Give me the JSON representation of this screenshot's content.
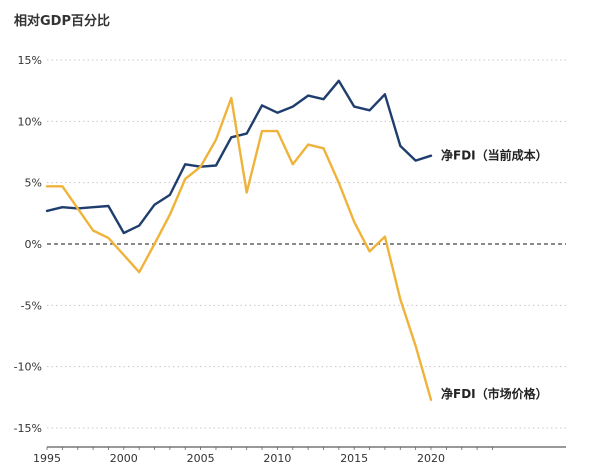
{
  "chart_data": {
    "type": "line",
    "title": "",
    "ylabel": "相对GDP百分比",
    "xlabel": "",
    "xlim": [
      1995,
      2024
    ],
    "ylim": [
      -16,
      16
    ],
    "x_ticks": [
      "1995",
      "2000",
      "2005",
      "2010",
      "2015",
      "2020"
    ],
    "y_ticks": [
      "15%",
      "10%",
      "5%",
      "0%",
      "-5%",
      "-10%",
      "-15%"
    ],
    "grid": "horizontal dotted",
    "reference_line": {
      "y": 0,
      "style": "dashed"
    },
    "series": [
      {
        "name": "净FDI（当前成本）",
        "color": "#1f3e6e",
        "x": [
          1995,
          1996,
          1997,
          1998,
          1999,
          2000,
          2001,
          2002,
          2003,
          2004,
          2005,
          2006,
          2007,
          2008,
          2009,
          2010,
          2011,
          2012,
          2013,
          2014,
          2015,
          2016,
          2017,
          2018,
          2019,
          2020
        ],
        "y": [
          2.7,
          3.0,
          2.9,
          3.0,
          3.1,
          0.9,
          1.5,
          3.2,
          4.0,
          6.5,
          6.3,
          6.4,
          8.7,
          9.0,
          11.3,
          10.7,
          11.2,
          12.1,
          11.8,
          13.3,
          11.2,
          10.9,
          12.2,
          8.0,
          6.8,
          7.2
        ]
      },
      {
        "name": "净FDI（市场价格）",
        "color": "#f0b33a",
        "x": [
          1995,
          1996,
          1997,
          1998,
          1999,
          2000,
          2001,
          2002,
          2003,
          2004,
          2005,
          2006,
          2007,
          2008,
          2009,
          2010,
          2011,
          2012,
          2013,
          2014,
          2015,
          2016,
          2017,
          2018,
          2019,
          2020
        ],
        "y": [
          4.7,
          4.7,
          2.9,
          1.1,
          0.5,
          -0.9,
          -2.3,
          0.0,
          2.4,
          5.3,
          6.3,
          8.5,
          11.9,
          4.2,
          9.2,
          9.2,
          6.5,
          8.1,
          7.8,
          5.0,
          1.8,
          -0.6,
          0.6,
          -4.5,
          -8.3,
          -12.7
        ]
      }
    ]
  }
}
